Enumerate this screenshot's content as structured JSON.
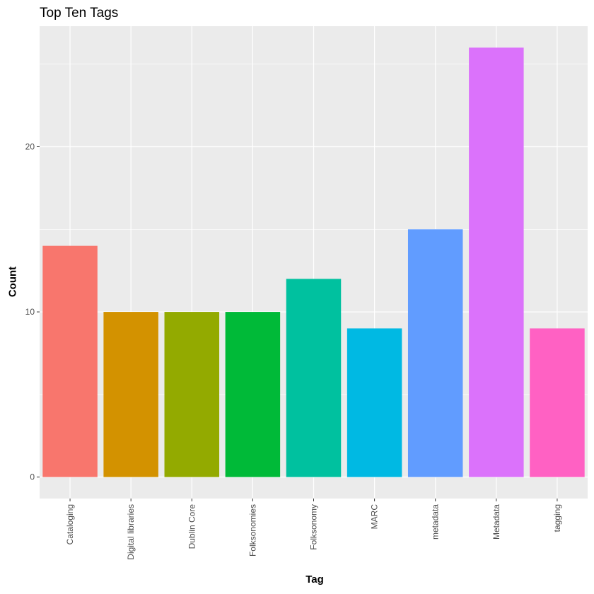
{
  "chart_data": {
    "type": "bar",
    "title": "Top Ten Tags",
    "xlabel": "Tag",
    "ylabel": "Count",
    "categories": [
      "Cataloging",
      "Digital libraries",
      "Dublin Core",
      "Folksonomies",
      "Folksonomy",
      "MARC",
      "metadata",
      "Metadata",
      "tagging"
    ],
    "values": [
      14,
      10,
      10,
      10,
      12,
      9,
      15,
      26,
      9
    ],
    "colors": [
      "#F8766D",
      "#D39200",
      "#93AA00",
      "#00BA38",
      "#00C19F",
      "#00B9E3",
      "#619CFF",
      "#DB72FB",
      "#FF61C3"
    ],
    "y_ticks": [
      0,
      10,
      20
    ],
    "y_tick_labels": [
      "0",
      "10",
      "20"
    ],
    "ylim": [
      -1.3,
      27.3
    ],
    "grid": true,
    "panel_background": "#EBEBEB",
    "legend": "none"
  }
}
